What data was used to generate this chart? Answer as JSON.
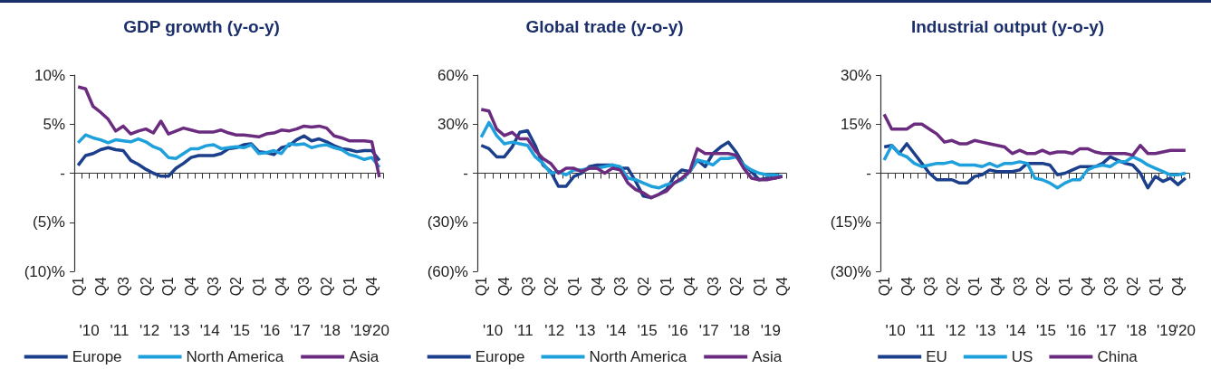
{
  "chart_data": [
    {
      "type": "line",
      "title": "GDP growth (y-o-y)",
      "categories": [
        "Q1",
        null,
        null,
        "Q4",
        null,
        null,
        "Q3",
        null,
        null,
        "Q2",
        null,
        null,
        "Q1",
        null,
        null,
        "Q4",
        null,
        null,
        "Q3",
        null,
        null,
        "Q2",
        null,
        null,
        "Q1",
        null,
        null,
        "Q4",
        null,
        null,
        "Q3",
        null,
        null,
        "Q2",
        null,
        null,
        "Q1",
        null,
        null,
        "Q4",
        null
      ],
      "series": [
        {
          "name": "Europe",
          "color": "#1b3f8b",
          "values": [
            0.8,
            1.8,
            2.0,
            2.4,
            2.6,
            2.4,
            2.3,
            1.3,
            0.9,
            0.4,
            0.0,
            -0.3,
            -0.3,
            0.5,
            1.0,
            1.6,
            1.8,
            1.8,
            1.8,
            2.0,
            2.5,
            2.6,
            2.9,
            3.0,
            2.2,
            2.1,
            1.9,
            2.6,
            2.8,
            3.4,
            3.8,
            3.3,
            3.5,
            3.2,
            2.8,
            2.5,
            2.4,
            2.2,
            2.3,
            2.3,
            1.3
          ]
        },
        {
          "name": "North America",
          "color": "#1ea0dc",
          "values": [
            3.1,
            3.9,
            3.6,
            3.4,
            3.1,
            3.4,
            3.3,
            3.2,
            3.5,
            3.2,
            2.7,
            2.4,
            1.6,
            1.5,
            2.0,
            2.5,
            2.5,
            2.8,
            2.9,
            2.5,
            2.6,
            2.7,
            2.6,
            2.9,
            2.0,
            2.1,
            2.3,
            2.0,
            3.0,
            2.9,
            3.0,
            2.6,
            2.8,
            2.9,
            2.6,
            2.4,
            1.9,
            1.7,
            1.4,
            1.6,
            0.6
          ]
        },
        {
          "name": "Asia",
          "color": "#6b2c80",
          "values": [
            8.8,
            8.6,
            6.8,
            6.2,
            5.5,
            4.3,
            4.8,
            4.0,
            4.3,
            4.5,
            4.1,
            5.3,
            4.0,
            4.3,
            4.6,
            4.4,
            4.2,
            4.2,
            4.2,
            4.4,
            4.1,
            3.9,
            3.9,
            3.8,
            3.7,
            4.0,
            4.1,
            4.4,
            4.3,
            4.5,
            4.8,
            4.7,
            4.8,
            4.6,
            3.8,
            3.6,
            3.3,
            3.3,
            3.3,
            3.2,
            -0.4
          ]
        }
      ],
      "ylim": [
        -10,
        10
      ],
      "yticks": [
        {
          "value": -10,
          "label": "(10)%"
        },
        {
          "value": -5,
          "label": "(5)%"
        },
        {
          "value": 0,
          "label": "-"
        },
        {
          "value": 5,
          "label": "5%"
        },
        {
          "value": 10,
          "label": "10%"
        }
      ],
      "annotations": [
        "'10",
        "'11",
        "'12",
        "'13",
        "'14",
        "'15",
        "'16",
        "'17",
        "'18",
        "'19",
        "'20"
      ],
      "legend": "bottom"
    },
    {
      "type": "line",
      "title": "Global trade (y-o-y)",
      "categories": [
        "Q1",
        null,
        null,
        "Q4",
        null,
        null,
        "Q3",
        null,
        null,
        "Q2",
        null,
        null,
        "Q1",
        null,
        null,
        "Q4",
        null,
        null,
        "Q3",
        null,
        null,
        "Q2",
        null,
        null,
        "Q1",
        null,
        null,
        "Q4",
        null,
        null,
        "Q3",
        null,
        null,
        "Q2",
        null,
        null,
        "Q1",
        null,
        null,
        "Q4"
      ],
      "series": [
        {
          "name": "Europe",
          "color": "#1b3f8b",
          "values": [
            17,
            15,
            10,
            10,
            16,
            25,
            26,
            17,
            5,
            1,
            -8,
            -8,
            -2,
            0,
            4,
            5,
            5,
            5,
            3,
            3,
            -5,
            -14,
            -15,
            -13,
            -10,
            -2,
            2,
            1,
            8,
            4,
            12,
            16,
            19,
            13,
            5,
            1,
            -4,
            -3,
            -3,
            -2
          ]
        },
        {
          "name": "North America",
          "color": "#1ea0dc",
          "values": [
            22,
            31,
            23,
            18,
            19,
            18,
            17,
            10,
            6,
            0,
            1,
            -1,
            2,
            2,
            3,
            3,
            4,
            5,
            4,
            -3,
            -4,
            -6,
            -8,
            -9,
            -7,
            -6,
            -4,
            1,
            8,
            7,
            5,
            9,
            9,
            10,
            5,
            2,
            0,
            -1,
            -1,
            -2
          ]
        },
        {
          "name": "Asia",
          "color": "#6b2c80",
          "values": [
            39,
            38,
            27,
            23,
            25,
            21,
            21,
            14,
            9,
            6,
            0,
            3,
            3,
            1,
            3,
            3,
            0,
            3,
            2,
            -6,
            -10,
            -12,
            -15,
            -13,
            -11,
            -6,
            -3,
            1,
            15,
            12,
            12,
            12,
            12,
            11,
            3,
            -3,
            -4,
            -4,
            -3,
            -2
          ]
        }
      ],
      "ylim": [
        -60,
        60
      ],
      "yticks": [
        {
          "value": -60,
          "label": "(60)%"
        },
        {
          "value": -30,
          "label": "(30)%"
        },
        {
          "value": 0,
          "label": "-"
        },
        {
          "value": 30,
          "label": "30%"
        },
        {
          "value": 60,
          "label": "60%"
        }
      ],
      "annotations": [
        "'10",
        "'11",
        "'12",
        "'13",
        "'14",
        "'15",
        "'16",
        "'17",
        "'18",
        "'19"
      ],
      "legend": "bottom"
    },
    {
      "type": "line",
      "title": "Industrial output (y-o-y)",
      "categories": [
        "Q1",
        null,
        null,
        "Q4",
        null,
        null,
        "Q3",
        null,
        null,
        "Q2",
        null,
        null,
        "Q1",
        null,
        null,
        "Q4",
        null,
        null,
        "Q3",
        null,
        null,
        "Q2",
        null,
        null,
        "Q1",
        null,
        null,
        "Q4",
        null,
        null,
        "Q3",
        null,
        null,
        "Q2",
        null,
        null,
        "Q1",
        null,
        null,
        "Q4",
        null
      ],
      "series": [
        {
          "name": "EU",
          "color": "#1b3f8b",
          "values": [
            8,
            8.5,
            6,
            9,
            6,
            3,
            0,
            -2,
            -2,
            -2,
            -3,
            -3,
            -1,
            -0.5,
            1,
            0.5,
            0.5,
            0.5,
            1,
            3,
            3,
            3,
            2.5,
            -0.5,
            0,
            1,
            2,
            2,
            2,
            3,
            5,
            4,
            3,
            2.5,
            0,
            -4.5,
            -1,
            -2.5,
            -1.5,
            -3.5,
            -1.5
          ]
        },
        {
          "name": "US",
          "color": "#1ea0dc",
          "values": [
            4,
            8.5,
            6,
            5,
            3,
            2,
            2.5,
            3,
            3,
            3.5,
            2.5,
            2.5,
            2.5,
            2,
            3,
            2,
            3,
            3,
            3.5,
            3,
            -1.5,
            -2,
            -3,
            -4.5,
            -3,
            -2,
            -2,
            1,
            2,
            2.5,
            2,
            3.5,
            3.5,
            5,
            4,
            2.5,
            1.5,
            0.5,
            -0.5,
            -0.5,
            0
          ]
        },
        {
          "name": "China",
          "color": "#6b2c80",
          "values": [
            18,
            13.5,
            13.5,
            13.5,
            15,
            15,
            13.5,
            12,
            9.5,
            10,
            9,
            9,
            10,
            9.5,
            9,
            8.5,
            8,
            6,
            7,
            6,
            6,
            7,
            6,
            6.5,
            6.5,
            6,
            7.5,
            7.5,
            6.5,
            6,
            6,
            6,
            6,
            5.5,
            8.5,
            6,
            6,
            6.5,
            7,
            7,
            7
          ]
        }
      ],
      "ylim": [
        -30,
        30
      ],
      "yticks": [
        {
          "value": -30,
          "label": "(30)%"
        },
        {
          "value": -15,
          "label": "(15)%"
        },
        {
          "value": 0,
          "label": "-"
        },
        {
          "value": 15,
          "label": "15%"
        },
        {
          "value": 30,
          "label": "30%"
        }
      ],
      "annotations": [
        "'10",
        "'11",
        "'12",
        "'13",
        "'14",
        "'15",
        "'16",
        "'17",
        "'18",
        "'19",
        "'20"
      ],
      "legend": "bottom"
    }
  ]
}
